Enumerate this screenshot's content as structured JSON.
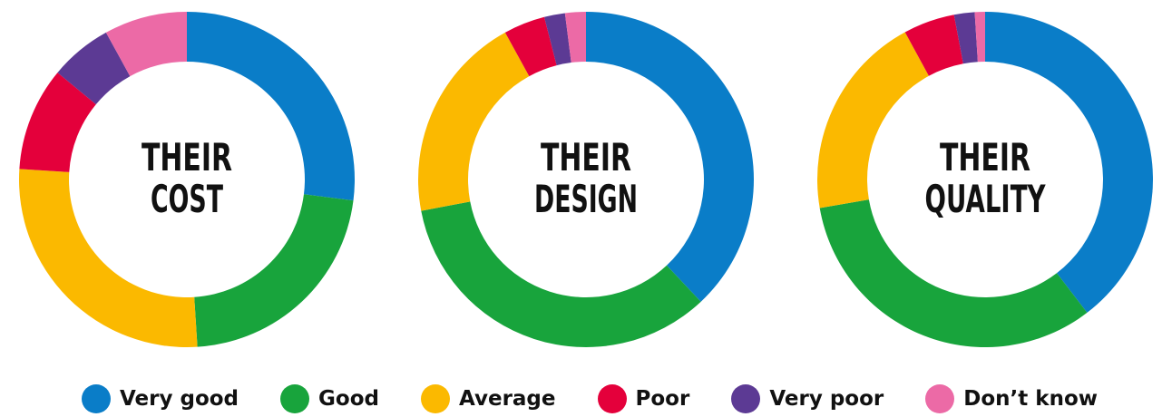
{
  "chart_data": [
    {
      "type": "pie",
      "variant": "donut",
      "title_lines": [
        "THEIR",
        "COST"
      ],
      "categories": [
        "Very good",
        "Good",
        "Average",
        "Poor",
        "Very poor",
        "Don't know"
      ],
      "values": [
        27,
        22,
        27,
        10,
        6,
        8
      ]
    },
    {
      "type": "pie",
      "variant": "donut",
      "title_lines": [
        "THEIR",
        "DESIGN"
      ],
      "categories": [
        "Very good",
        "Good",
        "Average",
        "Poor",
        "Very poor",
        "Don't know"
      ],
      "values": [
        38,
        34,
        20,
        4,
        2,
        2
      ]
    },
    {
      "type": "pie",
      "variant": "donut",
      "title_lines": [
        "THEIR",
        "QUALITY"
      ],
      "categories": [
        "Very good",
        "Good",
        "Average",
        "Poor",
        "Very poor",
        "Don't know"
      ],
      "values": [
        40,
        33,
        20,
        5,
        2,
        1
      ]
    }
  ],
  "legend": {
    "placement": "bottom",
    "items": [
      {
        "label": "Very good",
        "color": "#0a7dc8"
      },
      {
        "label": "Good",
        "color": "#18a43c"
      },
      {
        "label": "Average",
        "color": "#fbb900"
      },
      {
        "label": "Poor",
        "color": "#e4003b"
      },
      {
        "label": "Very poor",
        "color": "#5c3a94"
      },
      {
        "label": "Don’t know",
        "color": "#ec6aa6"
      }
    ]
  }
}
